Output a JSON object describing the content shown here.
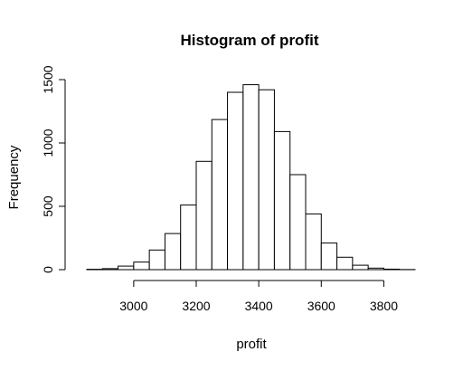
{
  "chart_data": {
    "type": "bar",
    "title": "Histogram of profit",
    "xlabel": "profit",
    "ylabel": "Frequency",
    "bin_width": 50,
    "bins": [
      {
        "start": 2850,
        "end": 2900,
        "value": 3
      },
      {
        "start": 2900,
        "end": 2950,
        "value": 8
      },
      {
        "start": 2950,
        "end": 3000,
        "value": 28
      },
      {
        "start": 3000,
        "end": 3050,
        "value": 60
      },
      {
        "start": 3050,
        "end": 3100,
        "value": 155
      },
      {
        "start": 3100,
        "end": 3150,
        "value": 285
      },
      {
        "start": 3150,
        "end": 3200,
        "value": 510
      },
      {
        "start": 3200,
        "end": 3250,
        "value": 855
      },
      {
        "start": 3250,
        "end": 3300,
        "value": 1185
      },
      {
        "start": 3300,
        "end": 3350,
        "value": 1400
      },
      {
        "start": 3350,
        "end": 3400,
        "value": 1460
      },
      {
        "start": 3400,
        "end": 3450,
        "value": 1420
      },
      {
        "start": 3450,
        "end": 3500,
        "value": 1090
      },
      {
        "start": 3500,
        "end": 3550,
        "value": 750
      },
      {
        "start": 3550,
        "end": 3600,
        "value": 440
      },
      {
        "start": 3600,
        "end": 3650,
        "value": 210
      },
      {
        "start": 3650,
        "end": 3700,
        "value": 98
      },
      {
        "start": 3700,
        "end": 3750,
        "value": 35
      },
      {
        "start": 3750,
        "end": 3800,
        "value": 12
      },
      {
        "start": 3800,
        "end": 3850,
        "value": 4
      },
      {
        "start": 3850,
        "end": 3900,
        "value": 1
      }
    ],
    "x_ticks": [
      3000,
      3200,
      3400,
      3600,
      3800
    ],
    "y_ticks": [
      0,
      500,
      1000,
      1500
    ],
    "xlim": [
      2850,
      3900
    ],
    "ylim": [
      0,
      1500
    ],
    "grid": false,
    "colors": {
      "bar_fill": "#ffffff",
      "bar_stroke": "#000000",
      "axis": "#000000"
    }
  }
}
